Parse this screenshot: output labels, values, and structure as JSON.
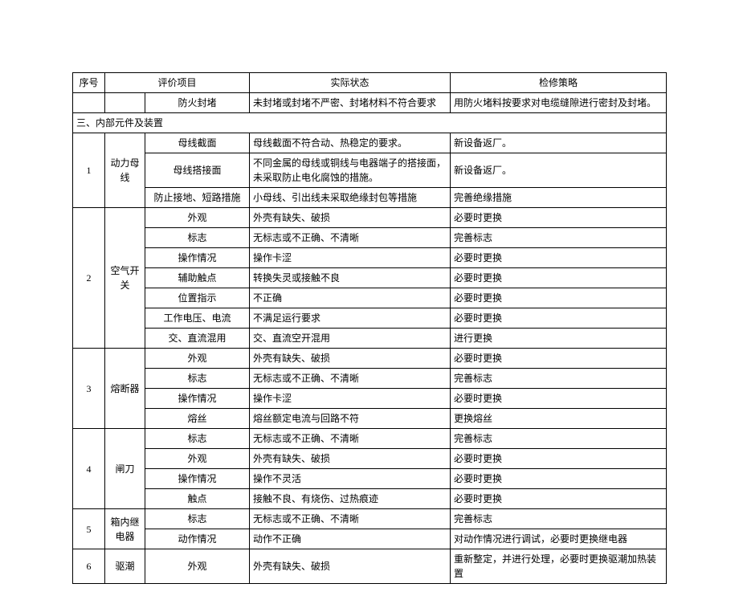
{
  "headers": {
    "num": "序号",
    "item": "评价项目",
    "status": "实际状态",
    "strategy": "检修策略"
  },
  "pre_section_row": {
    "item": "防火封堵",
    "status": "未封堵或封堵不严密、封堵材料不符合要求",
    "strategy": "用防火堵料按要求对电缆缝隙进行密封及封堵。"
  },
  "section_title": "三、内部元件及装置",
  "groups": [
    {
      "num": "1",
      "cat": "动力母线",
      "rows": [
        {
          "item": "母线截面",
          "status": "母线截面不符合动、热稳定的要求。",
          "strategy": "新设备返厂。"
        },
        {
          "item": "母线搭接面",
          "status": "不同金属的母线或铜线与电器端子的搭接面，未采取防止电化腐蚀的措施。",
          "strategy": "新设备返厂。"
        },
        {
          "item": "防止接地、短路措施",
          "status": "小母线、引出线未采取绝缘封包等措施",
          "strategy": "完善绝缘措施"
        }
      ]
    },
    {
      "num": "2",
      "cat": "空气开关",
      "rows": [
        {
          "item": "外观",
          "status": "外壳有缺失、破损",
          "strategy": "必要时更换"
        },
        {
          "item": "标志",
          "status": "无标志或不正确、不清晰",
          "strategy": "完善标志"
        },
        {
          "item": "操作情况",
          "status": "操作卡涩",
          "strategy": "必要时更换"
        },
        {
          "item": "辅助触点",
          "status": "转换失灵或接触不良",
          "strategy": "必要时更换"
        },
        {
          "item": "位置指示",
          "status": "不正确",
          "strategy": "必要时更换"
        },
        {
          "item": "工作电压、电流",
          "status": "不满足运行要求",
          "strategy": "必要时更换"
        },
        {
          "item": "交、直流混用",
          "status": "交、直流空开混用",
          "strategy": "进行更换"
        }
      ]
    },
    {
      "num": "3",
      "cat": "熔断器",
      "rows": [
        {
          "item": "外观",
          "status": "外壳有缺失、破损",
          "strategy": "必要时更换"
        },
        {
          "item": "标志",
          "status": "无标志或不正确、不清晰",
          "strategy": "完善标志"
        },
        {
          "item": "操作情况",
          "status": "操作卡涩",
          "strategy": "必要时更换"
        },
        {
          "item": "熔丝",
          "status": "熔丝额定电流与回路不符",
          "strategy": "更换熔丝"
        }
      ]
    },
    {
      "num": "4",
      "cat": "闸刀",
      "rows": [
        {
          "item": "标志",
          "status": "无标志或不正确、不清晰",
          "strategy": "完善标志"
        },
        {
          "item": "外观",
          "status": "外壳有缺失、破损",
          "strategy": "必要时更换"
        },
        {
          "item": "操作情况",
          "status": "操作不灵活",
          "strategy": "必要时更换"
        },
        {
          "item": "触点",
          "status": "接触不良、有烧伤、过热痕迹",
          "strategy": "必要时更换"
        }
      ]
    },
    {
      "num": "5",
      "cat": "箱内继电器",
      "rows": [
        {
          "item": "标志",
          "status": "无标志或不正确、不清晰",
          "strategy": "完善标志"
        },
        {
          "item": "动作情况",
          "status": "动作不正确",
          "strategy": "对动作情况进行调试，必要时更换继电器"
        }
      ]
    },
    {
      "num": "6",
      "cat": "驱潮",
      "rows": [
        {
          "item": "外观",
          "status": "外壳有缺失、破损",
          "strategy": "重新整定，并进行处理，必要时更换驱潮加热装置"
        }
      ]
    }
  ]
}
